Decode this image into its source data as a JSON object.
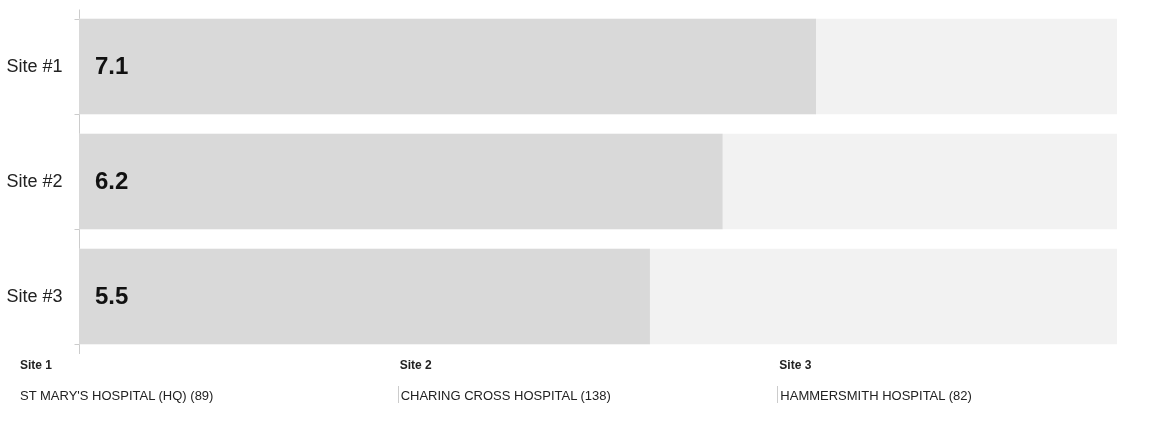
{
  "chart_data": {
    "type": "bar",
    "orientation": "horizontal",
    "categories": [
      "Site #1",
      "Site #2",
      "Site #3"
    ],
    "values": [
      7.1,
      6.2,
      5.5
    ],
    "color": "#d9d9d9",
    "data_labels": true,
    "xlim": [
      0,
      10
    ],
    "tick_labels": "y",
    "bands": [
      {
        "axis": "x",
        "from": 0,
        "to": 10,
        "color": "#f2f2f2"
      }
    ],
    "annotations": [
      "Site 1",
      "ST MARY'S HOSPITAL (HQ) (89)",
      "Site 2",
      "CHARING CROSS HOSPITAL (138)",
      "Site 3",
      "HAMMERSMITH HOSPITAL (82)"
    ]
  }
}
